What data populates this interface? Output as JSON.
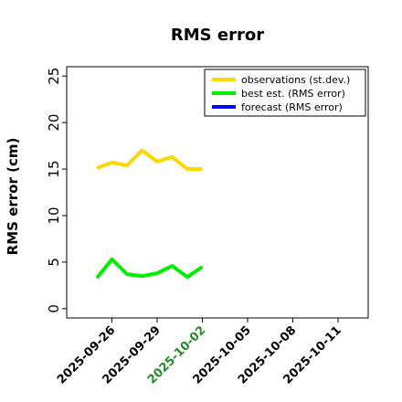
{
  "chart_data": {
    "type": "line",
    "title": "RMS error",
    "xlabel": "",
    "ylabel": "RMS error (cm)",
    "x_range": [
      "2025-09-23",
      "2025-10-13"
    ],
    "ylim": [
      -1,
      26
    ],
    "y_ticks": [
      0,
      5,
      10,
      15,
      20,
      25
    ],
    "x_ticks": [
      "2025-09-26",
      "2025-09-29",
      "2025-10-02",
      "2025-10-05",
      "2025-10-08",
      "2025-10-11"
    ],
    "highlighted_tick": "2025-10-02",
    "highlight_color": "#228b22",
    "grid": false,
    "legend_position": "top-right",
    "series": [
      {
        "name": "observations (st.dev.)",
        "color": "#ffd700",
        "x": [
          "2025-09-25",
          "2025-09-26",
          "2025-09-27",
          "2025-09-28",
          "2025-09-29",
          "2025-09-30",
          "2025-10-01",
          "2025-10-02"
        ],
        "values": [
          15.1,
          15.7,
          15.4,
          17.0,
          15.8,
          16.3,
          15.0,
          15.0
        ]
      },
      {
        "name": "best est. (RMS error)",
        "color": "#00ee00",
        "x": [
          "2025-09-25",
          "2025-09-26",
          "2025-09-27",
          "2025-09-28",
          "2025-09-29",
          "2025-09-30",
          "2025-10-01",
          "2025-10-02"
        ],
        "values": [
          3.3,
          5.3,
          3.7,
          3.5,
          3.8,
          4.6,
          3.4,
          4.5
        ]
      },
      {
        "name": "forecast (RMS error)",
        "color": "#0000ff",
        "x": [],
        "values": []
      }
    ]
  }
}
